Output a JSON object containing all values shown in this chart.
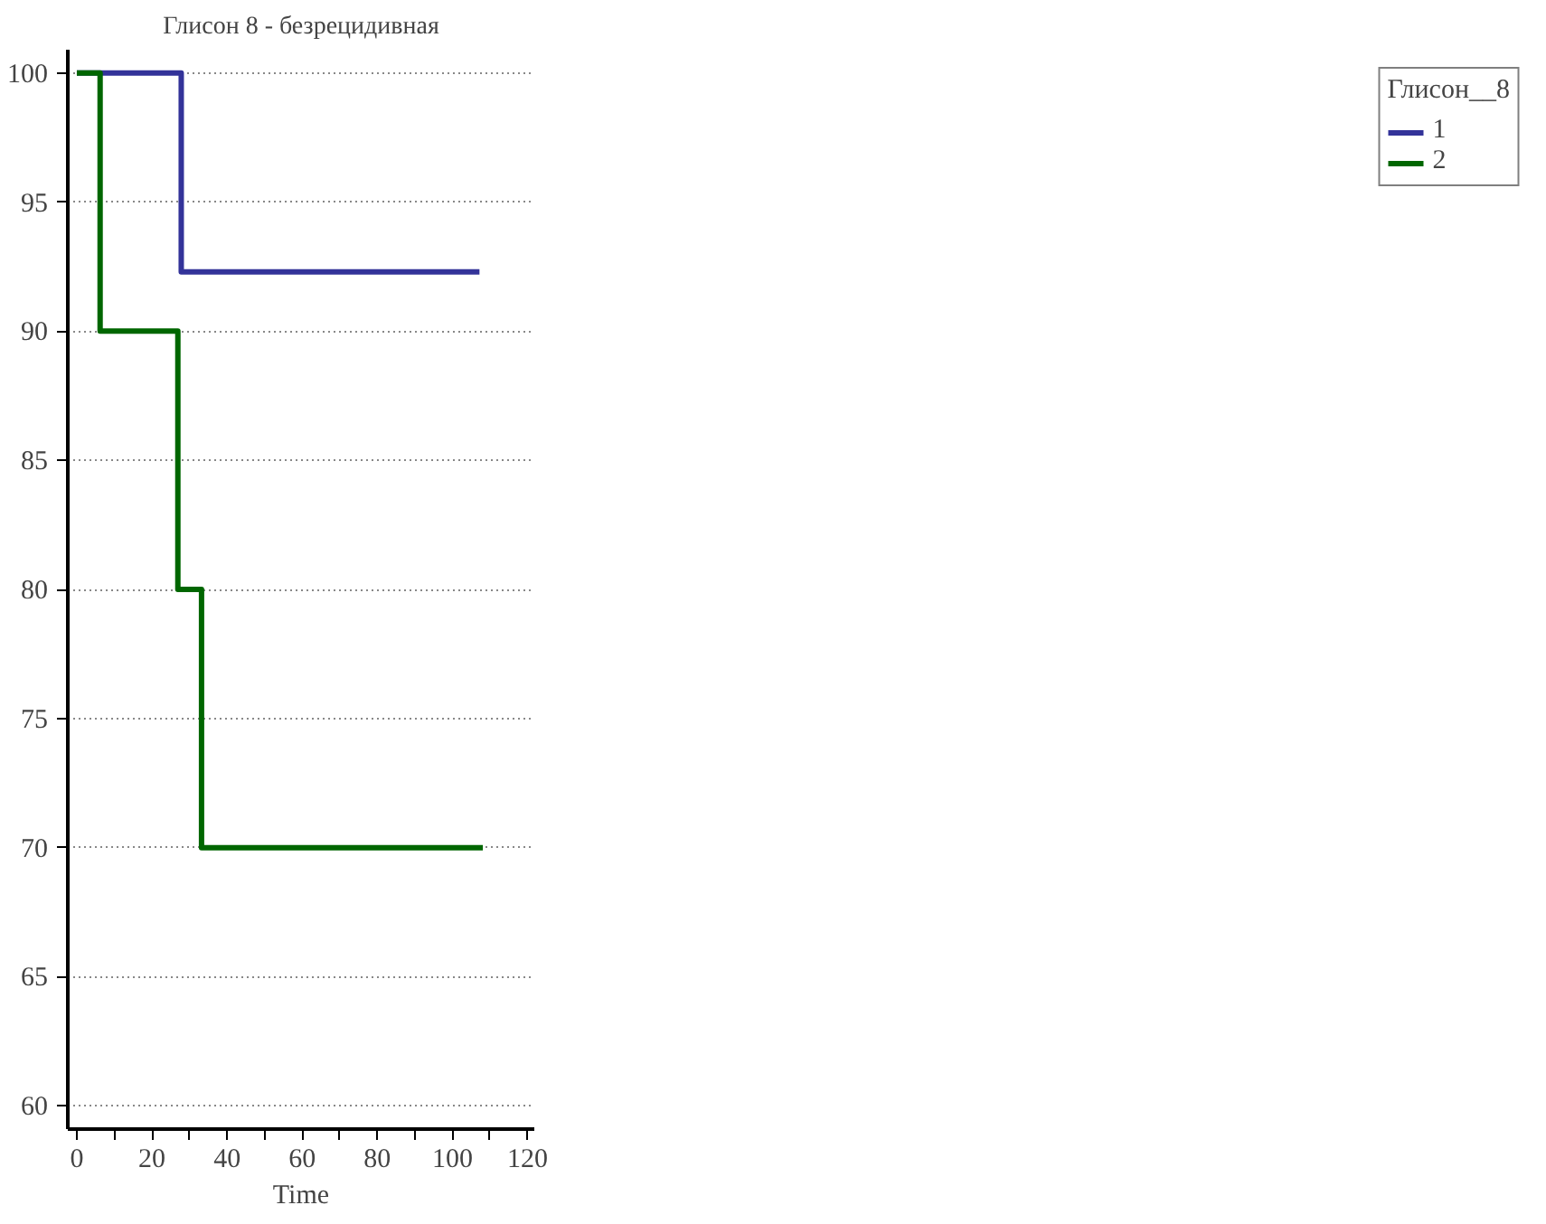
{
  "chart_data": {
    "type": "step",
    "title": "Глисон 8 - безрецидивная",
    "xlabel": "Time",
    "legend_title": "Глисон__8",
    "legend": "right",
    "grid": "y",
    "line_style": "solid",
    "xlim": [
      -2.4,
      121.8
    ],
    "ylim": [
      59.1,
      100.9
    ],
    "xticks": [
      0,
      {
        "value": 10,
        "label": null
      },
      20,
      {
        "value": 30,
        "label": null
      },
      40,
      {
        "value": 50,
        "label": null
      },
      60,
      {
        "value": 70,
        "label": null
      },
      80,
      {
        "value": 90,
        "label": null
      },
      100,
      {
        "value": 110,
        "label": null
      },
      120
    ],
    "yticks": [
      60,
      65,
      70,
      75,
      80,
      85,
      90,
      95,
      100
    ],
    "series": [
      {
        "name": "1",
        "color": "#333399",
        "x": [
          0,
          27.8,
          107.2
        ],
        "values": [
          100,
          92.3,
          92.3
        ]
      },
      {
        "name": "2",
        "color": "#006600",
        "x": [
          0,
          6.2,
          26.9,
          33.2,
          108.1
        ],
        "values": [
          100,
          90,
          80,
          70,
          70
        ]
      }
    ]
  }
}
